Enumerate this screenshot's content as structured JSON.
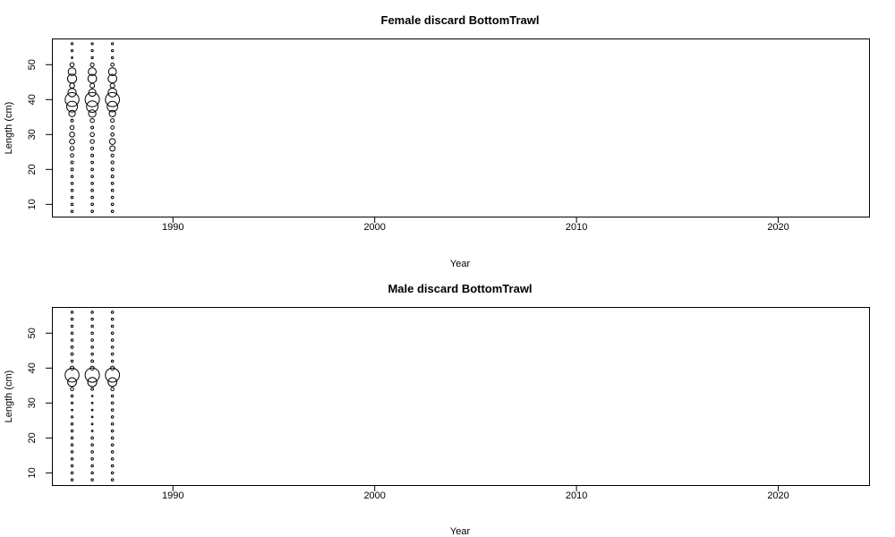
{
  "chart_data": [
    {
      "type": "scatter",
      "title": "Female discard BottomTrawl",
      "xlabel": "Year",
      "ylabel": "Length (cm)",
      "xlim": [
        1984,
        2024.5
      ],
      "ylim": [
        6.5,
        57.5
      ],
      "xticks": [
        1990,
        2000,
        2010,
        2020
      ],
      "yticks": [
        10,
        20,
        30,
        40,
        50
      ],
      "years": [
        1985,
        1986,
        1987
      ],
      "lengths": [
        8,
        10,
        12,
        14,
        16,
        18,
        20,
        22,
        24,
        26,
        28,
        30,
        32,
        34,
        36,
        38,
        40,
        42,
        44,
        46,
        48,
        50,
        52,
        54,
        56
      ],
      "proportions": [
        [
          0.004,
          0.004,
          0.004,
          0.004,
          0.004,
          0.004,
          0.005,
          0.005,
          0.008,
          0.012,
          0.018,
          0.018,
          0.012,
          0.005,
          0.03,
          0.085,
          0.14,
          0.05,
          0.018,
          0.06,
          0.045,
          0.012,
          0.002,
          0.003,
          0.003
        ],
        [
          0.004,
          0.004,
          0.004,
          0.004,
          0.004,
          0.004,
          0.004,
          0.004,
          0.005,
          0.006,
          0.012,
          0.012,
          0.005,
          0.012,
          0.04,
          0.095,
          0.15,
          0.04,
          0.015,
          0.055,
          0.045,
          0.01,
          0.003,
          0.003,
          0.003
        ],
        [
          0.004,
          0.004,
          0.004,
          0.004,
          0.004,
          0.005,
          0.005,
          0.006,
          0.006,
          0.02,
          0.025,
          0.008,
          0.008,
          0.01,
          0.03,
          0.08,
          0.145,
          0.055,
          0.015,
          0.055,
          0.045,
          0.008,
          0.003,
          0.003,
          0.003
        ]
      ]
    },
    {
      "type": "scatter",
      "title": "Male discard BottomTrawl",
      "xlabel": "Year",
      "ylabel": "Length (cm)",
      "xlim": [
        1984,
        2024.5
      ],
      "ylim": [
        6.5,
        57.5
      ],
      "xticks": [
        1990,
        2000,
        2010,
        2020
      ],
      "yticks": [
        10,
        20,
        30,
        40,
        50
      ],
      "years": [
        1985,
        1986,
        1987
      ],
      "lengths": [
        8,
        10,
        12,
        14,
        16,
        18,
        20,
        22,
        24,
        26,
        28,
        30,
        32,
        34,
        36,
        38,
        40,
        42,
        44,
        46,
        48,
        50,
        52,
        54,
        56
      ],
      "proportions": [
        [
          0.004,
          0.004,
          0.004,
          0.004,
          0.004,
          0.004,
          0.004,
          0.004,
          0.004,
          0.003,
          0.002,
          0.003,
          0.004,
          0.008,
          0.06,
          0.15,
          0.012,
          0.004,
          0.005,
          0.005,
          0.004,
          0.004,
          0.004,
          0.004,
          0.004
        ],
        [
          0.004,
          0.004,
          0.004,
          0.004,
          0.004,
          0.004,
          0.004,
          0.002,
          0.002,
          0.002,
          0.002,
          0.002,
          0.002,
          0.005,
          0.065,
          0.16,
          0.012,
          0.005,
          0.004,
          0.004,
          0.004,
          0.004,
          0.004,
          0.004,
          0.004
        ],
        [
          0.004,
          0.004,
          0.004,
          0.004,
          0.004,
          0.004,
          0.004,
          0.004,
          0.004,
          0.004,
          0.004,
          0.004,
          0.004,
          0.008,
          0.06,
          0.155,
          0.012,
          0.004,
          0.004,
          0.004,
          0.004,
          0.004,
          0.004,
          0.004,
          0.004
        ]
      ]
    }
  ]
}
